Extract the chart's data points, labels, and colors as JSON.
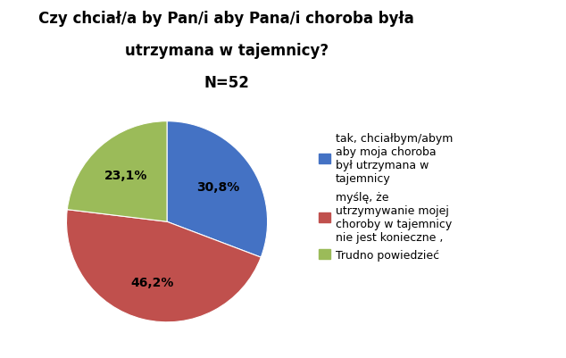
{
  "title_line1": "Czy chciał/a by Pan/i aby Pana/i choroba była",
  "title_line2": "utrzymana w tajemnicy?",
  "subtitle": "N=52",
  "values": [
    30.8,
    46.2,
    23.1
  ],
  "labels_pie": [
    "30,8%",
    "46,2%",
    "23,1%"
  ],
  "colors": [
    "#4472C4",
    "#C0504D",
    "#9BBB59"
  ],
  "legend_labels": [
    "tak, chciałbym/abym\naby moja choroba\nbył utrzymana w\ntajemnicy",
    "myślę, że\nutrzymywanie mojej\nchoroby w tajemnicy\nnie jest konieczne ,",
    "Trudno powiedzieć"
  ],
  "startangle": 90,
  "background_color": "#ffffff",
  "label_fontsize": 10,
  "title_fontsize": 12,
  "subtitle_fontsize": 12,
  "legend_fontsize": 9
}
